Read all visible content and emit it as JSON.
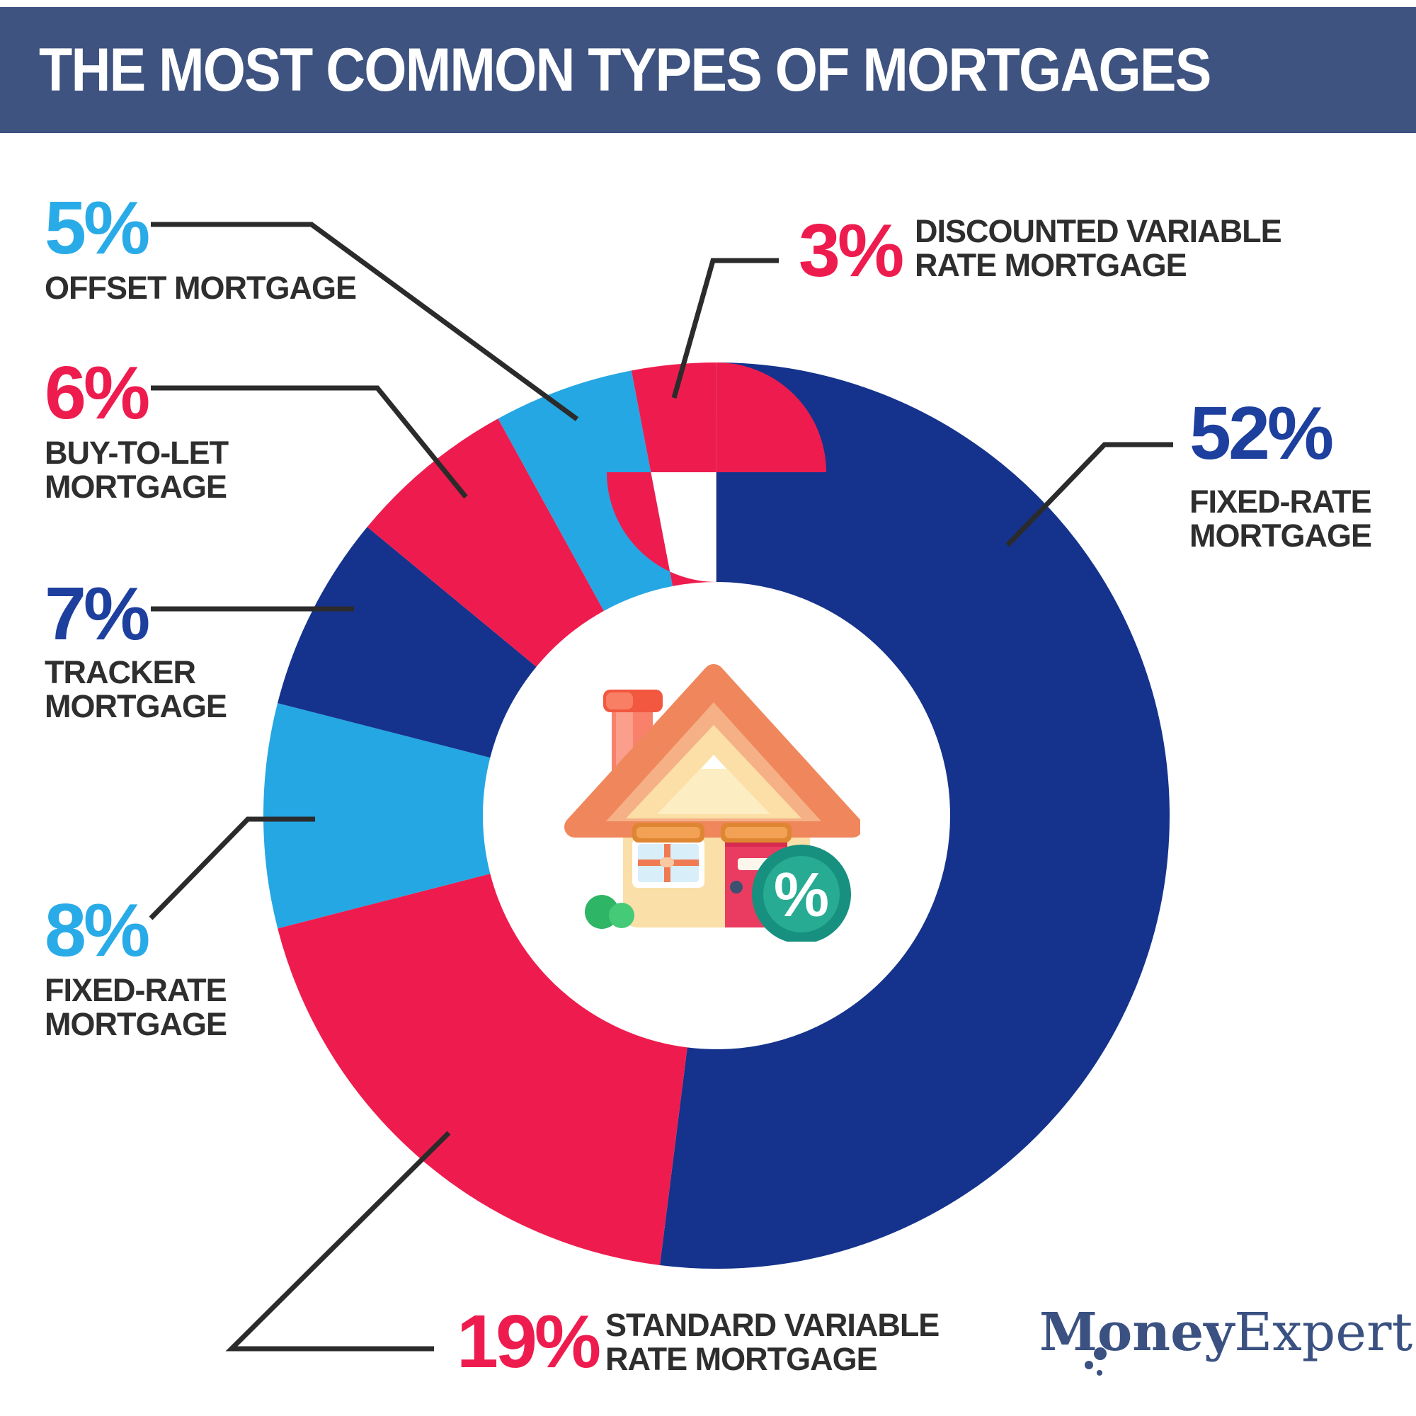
{
  "header": {
    "title": "THE MOST COMMON TYPES OF MORTGAGES",
    "bg_color": "#3E5380"
  },
  "palette": {
    "navy": "#15338C",
    "red": "#EE1C4E",
    "light_blue": "#24A7E3",
    "navy_text": "#1D3F9E",
    "light_blue_text": "#29ABE8",
    "label_gray": "#2E2E2E",
    "leader_black": "#2B2B2B"
  },
  "chart_data": {
    "type": "pie",
    "subtype": "donut",
    "title": "The Most Common Types of Mortgages",
    "start_angle_deg": 0,
    "direction": "clockwise",
    "inner_radius_ratio": 0.52,
    "legend_position": "callouts-around-chart",
    "grid": false,
    "segments": [
      {
        "label": "Fixed-Rate Mortgage",
        "value": 52,
        "color": "#15338C"
      },
      {
        "label": "Standard Variable Rate Mortgage",
        "value": 19,
        "color": "#EE1C4E"
      },
      {
        "label": "Fixed-Rate Mortgage",
        "value": 8,
        "color": "#24A7E3"
      },
      {
        "label": "Tracker Mortgage",
        "value": 7,
        "color": "#15338C"
      },
      {
        "label": "Buy-To-Let Mortgage",
        "value": 6,
        "color": "#EE1C4E"
      },
      {
        "label": "Offset Mortgage",
        "value": 5,
        "color": "#24A7E3"
      },
      {
        "label": "Discounted Variable Rate Mortgage",
        "value": 3,
        "color": "#EE1C4E"
      }
    ]
  },
  "callouts": {
    "offset": {
      "value": "5%",
      "label1": "OFFSET MORTGAGE",
      "label2": "",
      "color": "#29ABE8"
    },
    "buy_to_let": {
      "value": "6%",
      "label1": "BUY-TO-LET",
      "label2": "MORTGAGE",
      "color": "#EE1C4E"
    },
    "tracker": {
      "value": "7%",
      "label1": "TRACKER",
      "label2": "MORTGAGE",
      "color": "#1D3F9E"
    },
    "fixed_rate_8": {
      "value": "8%",
      "label1": "FIXED-RATE",
      "label2": "MORTGAGE",
      "color": "#29ABE8"
    },
    "svr_19": {
      "value": "19%",
      "label1": "STANDARD VARIABLE",
      "label2": "RATE MORTGAGE",
      "color": "#EE1C4E"
    },
    "fixed_rate_52": {
      "value": "52%",
      "label1": "FIXED-RATE",
      "label2": "MORTGAGE",
      "color": "#1D3F9E"
    },
    "discounted": {
      "value": "3%",
      "label1": "DISCOUNTED VARIABLE",
      "label2": "RATE MORTGAGE",
      "color": "#EE1C4E"
    }
  },
  "icons": {
    "center_icon": "house-with-percent-badge-icon"
  },
  "logo": {
    "part1": "Money",
    "part2": "Expert",
    "color": "#3A5181"
  }
}
